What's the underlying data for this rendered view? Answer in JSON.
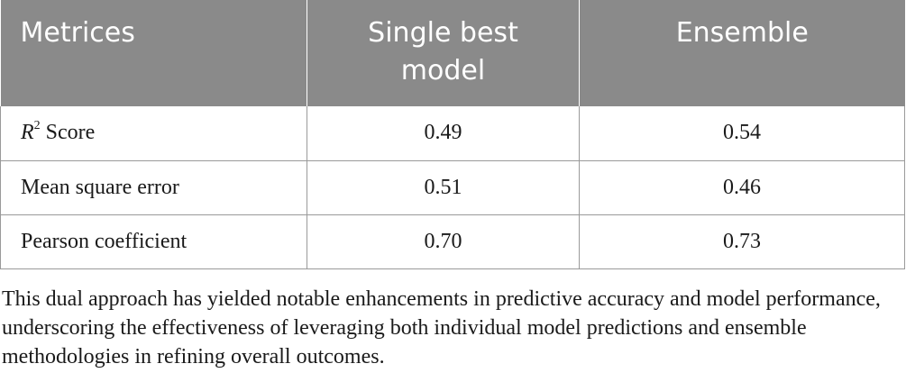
{
  "table": {
    "headers": [
      "Metrices",
      "Single best model",
      "Ensemble"
    ],
    "header_lines": {
      "col2_line1": "Single best",
      "col2_line2": "model"
    },
    "rows": [
      {
        "metric_var": "R",
        "metric_sup": "2",
        "metric_rest": " Score",
        "single": "0.49",
        "ensemble": "0.54"
      },
      {
        "metric": "Mean square error",
        "single": "0.51",
        "ensemble": "0.46"
      },
      {
        "metric": "Pearson coefficient",
        "single": "0.70",
        "ensemble": "0.73"
      }
    ]
  },
  "footnote": "This dual approach has yielded notable enhancements in predictive accuracy and model performance, underscoring the effectiveness of leveraging both individual model predictions and ensemble methodologies in refining overall outcomes.",
  "colors": {
    "header_bg": "#8a8a8a",
    "header_text": "#ffffff",
    "border": "#9a9a9a",
    "body_text": "#1a1a1a"
  }
}
